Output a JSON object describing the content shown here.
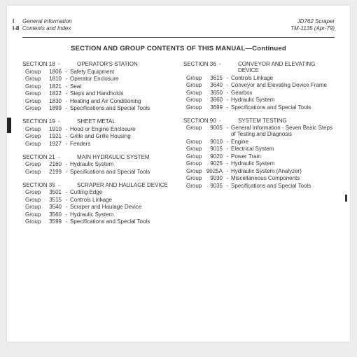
{
  "header": {
    "left1": "General Information",
    "left2": "Contents and Index",
    "right1": "JD762 Scraper",
    "right2": "TM-1135  (Apr-79)",
    "pgI": "I",
    "pgI8": "I-8"
  },
  "title": "SECTION AND GROUP CONTENTS OF THIS MANUAL—Continued",
  "labels": {
    "section": "SECTION",
    "group": "Group",
    "dash": "-"
  },
  "left": [
    {
      "num": "18",
      "title": "OPERATOR'S STATION",
      "groups": [
        {
          "n": "1806",
          "t": "Safety Equipment"
        },
        {
          "n": "1810",
          "t": "Operator Enclosure"
        },
        {
          "n": "1821",
          "t": "Seat"
        },
        {
          "n": "1822",
          "t": "Steps and Handholds"
        },
        {
          "n": "1830",
          "t": "Heating and Air Conditioning"
        },
        {
          "n": "1899",
          "t": "Specifications and Special Tools"
        }
      ]
    },
    {
      "num": "19",
      "title": "SHEET METAL",
      "groups": [
        {
          "n": "1910",
          "t": "Hood or Engine Enclosure"
        },
        {
          "n": "1921",
          "t": "Grille and Grille Housing"
        },
        {
          "n": "1927",
          "t": "Fenders"
        }
      ]
    },
    {
      "num": "21",
      "title": "MAIN HYDRAULIC SYSTEM",
      "groups": [
        {
          "n": "2160",
          "t": "Hydraulic System"
        },
        {
          "n": "2199",
          "t": "Specifications and Special Tools"
        }
      ]
    },
    {
      "num": "35",
      "title": "SCRAPER AND HAULAGE DEVICE",
      "groups": [
        {
          "n": "3501",
          "t": "Cutting Edge"
        },
        {
          "n": "3515",
          "t": "Controls Linkage"
        },
        {
          "n": "3540",
          "t": "Scraper and Haulage Device"
        },
        {
          "n": "3560",
          "t": "Hydraulic System"
        },
        {
          "n": "3599",
          "t": "Specifications and Special Tools"
        }
      ]
    }
  ],
  "right": [
    {
      "num": "36",
      "title": "CONVEYOR AND ELEVATING DEVICE",
      "groups": [
        {
          "n": "3615",
          "t": "Controls Linkage"
        },
        {
          "n": "3640",
          "t": "Conveyor and Elevating Device Frame"
        },
        {
          "n": "3650",
          "t": "Gearbox"
        },
        {
          "n": "3660",
          "t": "Hydraulic System"
        },
        {
          "n": "3699",
          "t": "Specifications and Special Tools"
        }
      ]
    },
    {
      "num": "90",
      "title": "SYSTEM TESTING",
      "groups": [
        {
          "n": "9005",
          "t": "General Information - Seven Basic Steps of Testing and Diagnosis"
        },
        {
          "n": "9010",
          "t": "Engine"
        },
        {
          "n": "9015",
          "t": "Electrical System"
        },
        {
          "n": "9020",
          "t": "Power Train"
        },
        {
          "n": "9025",
          "t": "Hydraulic System"
        },
        {
          "n": "9025A",
          "t": "Hydraulic System (Analyzer)"
        },
        {
          "n": "9030",
          "t": "Miscellaneous Components"
        },
        {
          "n": "9035",
          "t": "Specifications and Special Tools"
        }
      ]
    }
  ]
}
